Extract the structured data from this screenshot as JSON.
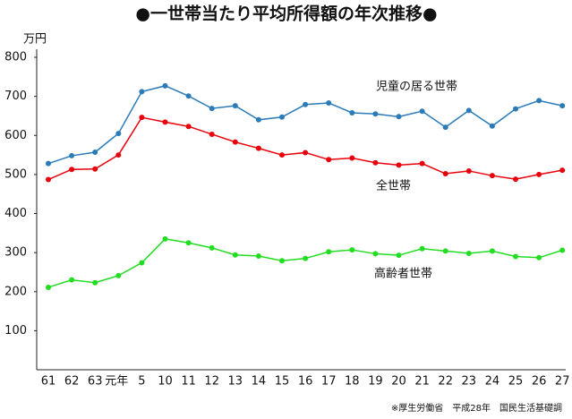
{
  "chart_data": {
    "type": "line",
    "title": "●一世帯当たり平均所得額の年次推移●",
    "y_label": "万円",
    "source": "※厚生労働省　平成28年　国民生活基礎調",
    "categories": [
      "61",
      "62",
      "63",
      "元年",
      "5",
      "10",
      "11",
      "12",
      "13",
      "14",
      "15",
      "16",
      "17",
      "18",
      "19",
      "20",
      "21",
      "22",
      "23",
      "24",
      "25",
      "26",
      "27"
    ],
    "ylim": [
      0,
      800
    ],
    "yticks": [
      100,
      200,
      300,
      400,
      500,
      600,
      700,
      800
    ],
    "grid": false,
    "series": [
      {
        "name": "児童の居る世帯",
        "color": "#2b7bb9",
        "values": [
          528,
          548,
          557,
          605,
          712,
          727,
          701,
          669,
          676,
          640,
          647,
          679,
          683,
          658,
          655,
          648,
          662,
          621,
          664,
          624,
          668,
          689,
          676
        ]
      },
      {
        "name": "全世帯",
        "color": "#e8000b",
        "values": [
          487,
          513,
          514,
          550,
          646,
          634,
          623,
          603,
          583,
          567,
          550,
          556,
          538,
          542,
          530,
          524,
          528,
          502,
          509,
          497,
          488,
          500,
          511
        ]
      },
      {
        "name": "高齢者世帯",
        "color": "#22dd22",
        "values": [
          211,
          230,
          223,
          241,
          274,
          335,
          325,
          312,
          294,
          291,
          279,
          285,
          302,
          307,
          297,
          293,
          310,
          304,
          298,
          304,
          290,
          287,
          306
        ]
      }
    ]
  }
}
